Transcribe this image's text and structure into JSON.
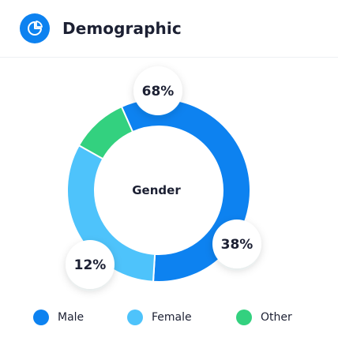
{
  "header": {
    "title": "Demographic",
    "icon": "pie-chart-icon"
  },
  "chart_data": {
    "type": "pie",
    "variant": "donut",
    "center_label": "Gender",
    "slices": [
      {
        "name": "Male",
        "value": 68,
        "label": "68%",
        "color": "#0d82f0"
      },
      {
        "name": "Female",
        "value": 38,
        "label": "38%",
        "color": "#4ec3fb"
      },
      {
        "name": "Other",
        "value": 12,
        "label": "12%",
        "color": "#33d17f"
      }
    ],
    "legend": {
      "position": "bottom"
    }
  },
  "legend": [
    {
      "label": "Male",
      "color": "#0d82f0"
    },
    {
      "label": "Female",
      "color": "#4ec3fb"
    },
    {
      "label": "Other",
      "color": "#33d17f"
    }
  ]
}
